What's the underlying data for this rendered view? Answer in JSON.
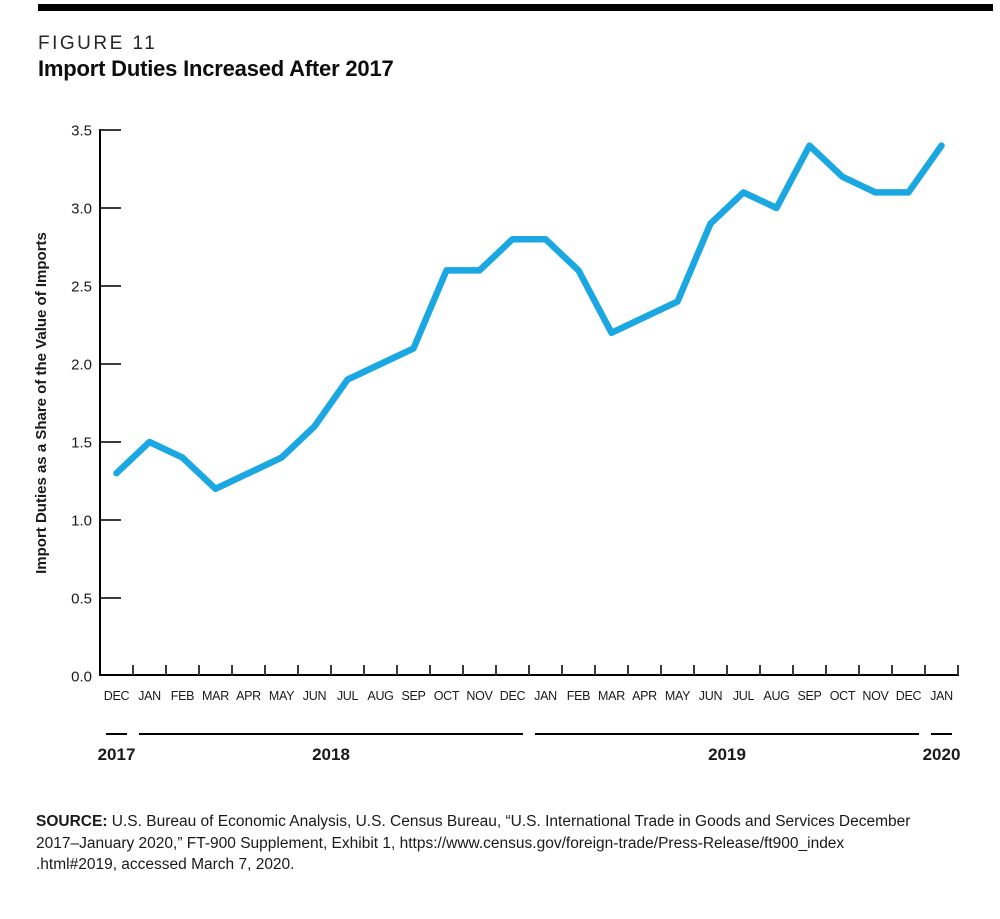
{
  "figure": {
    "label": "FIGURE 11",
    "title": "Import Duties Increased After 2017"
  },
  "chart_data": {
    "type": "line",
    "title": "Import Duties Increased After 2017",
    "ylabel": "Import Duties as a Share of the Value of Imports",
    "xlabel": "",
    "ylim": [
      0.0,
      3.5
    ],
    "ytick_step": 0.5,
    "yticks": [
      "0.0",
      "0.5",
      "1.0",
      "1.5",
      "2.0",
      "2.5",
      "3.0",
      "3.5"
    ],
    "grid": "off",
    "legend": "none",
    "line_color": "#1BA8E2",
    "categories": [
      "DEC",
      "JAN",
      "FEB",
      "MAR",
      "APR",
      "MAY",
      "JUN",
      "JUL",
      "AUG",
      "SEP",
      "OCT",
      "NOV",
      "DEC",
      "JAN",
      "FEB",
      "MAR",
      "APR",
      "MAY",
      "JUN",
      "JUL",
      "AUG",
      "SEP",
      "OCT",
      "NOV",
      "DEC",
      "JAN"
    ],
    "values": [
      1.3,
      1.5,
      1.4,
      1.2,
      1.3,
      1.4,
      1.6,
      1.9,
      2.0,
      2.1,
      2.6,
      2.6,
      2.8,
      2.8,
      2.6,
      2.2,
      2.3,
      2.4,
      2.9,
      3.1,
      3.0,
      3.4,
      3.2,
      3.1,
      3.1,
      3.4
    ],
    "year_groups": [
      {
        "label": "2017",
        "months": 1
      },
      {
        "label": "2018",
        "months": 12
      },
      {
        "label": "2019",
        "months": 12
      },
      {
        "label": "2020",
        "months": 1
      }
    ]
  },
  "source": {
    "label": "SOURCE:",
    "line1": "U.S. Bureau of Economic Analysis, U.S. Census Bureau, “U.S. International Trade in Goods and Services December",
    "line2": "2017–January 2020,” FT-900 Supplement, Exhibit 1, https://www.census.gov/foreign-trade/Press-Release/ft900_index",
    "line3": ".html#2019, accessed March 7, 2020."
  },
  "colors": {
    "line": "#1BA8E2",
    "axis": "#000000",
    "tick": "#3a3a3a",
    "text": "#1a1a1a"
  }
}
